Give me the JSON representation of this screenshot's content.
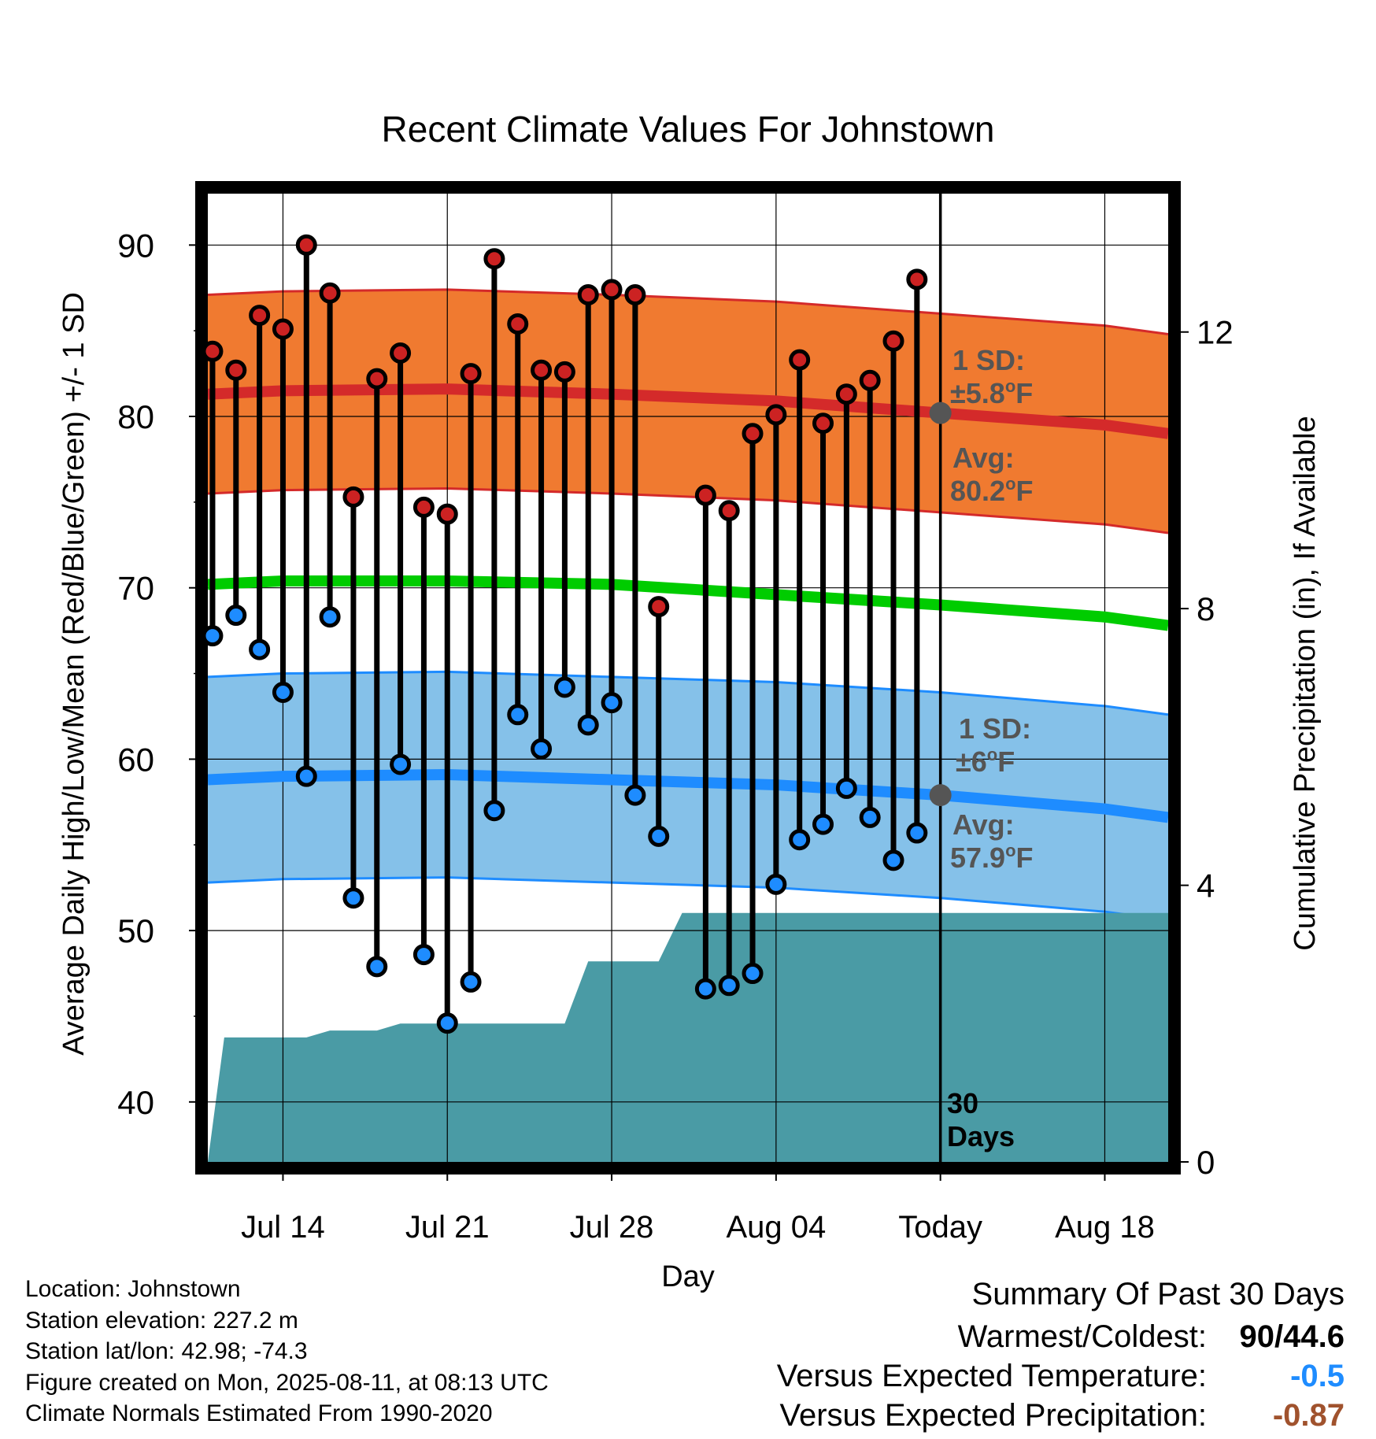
{
  "chart_data": {
    "type": "line",
    "title": "Recent Climate Values For Johnstown",
    "xlabel": "Day",
    "ylabel": "Average Daily High/Low/Mean (Red/Blue/Green) +/- 1 SD",
    "y2label": "Cumulative Precipitation (in), If Available",
    "ylim": [
      36.5,
      93
    ],
    "y2lim": [
      0,
      14
    ],
    "y_ticks": [
      40,
      50,
      60,
      70,
      80,
      90
    ],
    "y2_ticks": [
      0,
      4,
      8,
      12
    ],
    "x_tick_labels": [
      "Jul 14",
      "Jul 21",
      "Jul 28",
      "Aug 04",
      "Today",
      "Aug 18"
    ],
    "x_tick_days": [
      14,
      21,
      28,
      35,
      42,
      49
    ],
    "today_day": 42,
    "xlim": [
      10.8,
      51.7
    ],
    "grid": true,
    "days": [
      11,
      12,
      13,
      14,
      15,
      16,
      17,
      18,
      19,
      20,
      21,
      22,
      23,
      24,
      25,
      26,
      27,
      28,
      29,
      30,
      31,
      32,
      33,
      34,
      35,
      36,
      37,
      38,
      39,
      40,
      41
    ],
    "daily_high": [
      83.8,
      82.7,
      85.9,
      85.1,
      90.0,
      87.2,
      75.3,
      82.2,
      83.7,
      74.7,
      74.3,
      82.5,
      89.2,
      85.4,
      82.7,
      82.6,
      87.1,
      87.4,
      87.1,
      68.9,
      75.4,
      74.5,
      79.0,
      80.1,
      83.3,
      79.6,
      81.3,
      82.1,
      84.4,
      88.0
    ],
    "daily_low": [
      67.2,
      68.4,
      66.4,
      63.9,
      59.0,
      68.3,
      51.9,
      47.9,
      59.7,
      48.6,
      44.6,
      47.0,
      57.0,
      62.6,
      60.6,
      64.2,
      62.0,
      63.3,
      57.9,
      55.5,
      46.6,
      46.8,
      47.5,
      52.7,
      55.3,
      56.2,
      58.3,
      56.6,
      54.1,
      55.7
    ],
    "daily_days": [
      11,
      12,
      13,
      14,
      15,
      16,
      17,
      18,
      19,
      20,
      21,
      22,
      23,
      24,
      25,
      26,
      27,
      28,
      29,
      30,
      32,
      33,
      34,
      35,
      36,
      37,
      38,
      39,
      40,
      41
    ],
    "normal_days": [
      10.8,
      14,
      21,
      28,
      35,
      42,
      49,
      51.7
    ],
    "normal_high": [
      81.3,
      81.5,
      81.6,
      81.3,
      80.9,
      80.2,
      79.5,
      79.0
    ],
    "normal_high_sd": 5.8,
    "normal_low": [
      58.8,
      59.0,
      59.1,
      58.8,
      58.5,
      57.9,
      57.1,
      56.6
    ],
    "normal_low_sd": 6.0,
    "normal_mean": [
      70.2,
      70.4,
      70.4,
      70.2,
      69.6,
      69.0,
      68.3,
      67.8
    ],
    "precip_days": [
      10.8,
      11.5,
      12.5,
      13.5,
      15,
      16,
      17,
      18,
      19,
      20,
      21,
      22,
      23,
      24,
      25,
      26,
      27,
      28,
      29,
      30,
      31,
      32,
      42,
      51.7
    ],
    "cumulative_precip": [
      0.0,
      1.8,
      1.8,
      1.8,
      1.8,
      1.9,
      1.9,
      1.9,
      2.0,
      2.0,
      2.0,
      2.0,
      2.0,
      2.0,
      2.0,
      2.0,
      2.9,
      2.9,
      2.9,
      2.9,
      3.6,
      3.6,
      3.6,
      3.6
    ],
    "annotations": {
      "high_sd_title": "1 SD:",
      "high_sd_value": "±5.8",
      "high_avg_title": "Avg:",
      "high_avg_value": "80.2",
      "low_sd_title": "1 SD:",
      "low_sd_value": "±6",
      "low_avg_title": "Avg:",
      "low_avg_value": "57.9",
      "degree_unit": "F",
      "window_count": "30",
      "window_unit": "Days"
    },
    "colors": {
      "high_band": "#f07a30",
      "high_line": "#d42a2a",
      "high_point": "#cc2222",
      "low_band": "#85c1e9",
      "low_line": "#1e8cff",
      "low_point": "#1e8cff",
      "mean_line": "#00cc00",
      "precip": "#4a9ba5",
      "avg_marker": "#555555",
      "annotation_text": "#555555"
    }
  },
  "info": {
    "location": "Location: Johnstown",
    "elevation": "Station elevation: 227.2 m",
    "latlon": "Station lat/lon: 42.98; -74.3",
    "created": "Figure created on Mon, 2025-08-11, at 08:13 UTC",
    "normals": "Climate Normals Estimated From 1990-2020"
  },
  "summary": {
    "title": "Summary Of Past 30 Days",
    "warmest_coldest_label": "Warmest/Coldest:",
    "warmest_coldest_value": "90/44.6",
    "temp_label": "Versus Expected Temperature:",
    "temp_value": "-0.5",
    "temp_color": "#1e8cff",
    "precip_label": "Versus Expected Precipitation:",
    "precip_value": "-0.87",
    "precip_color": "#a0522d"
  }
}
